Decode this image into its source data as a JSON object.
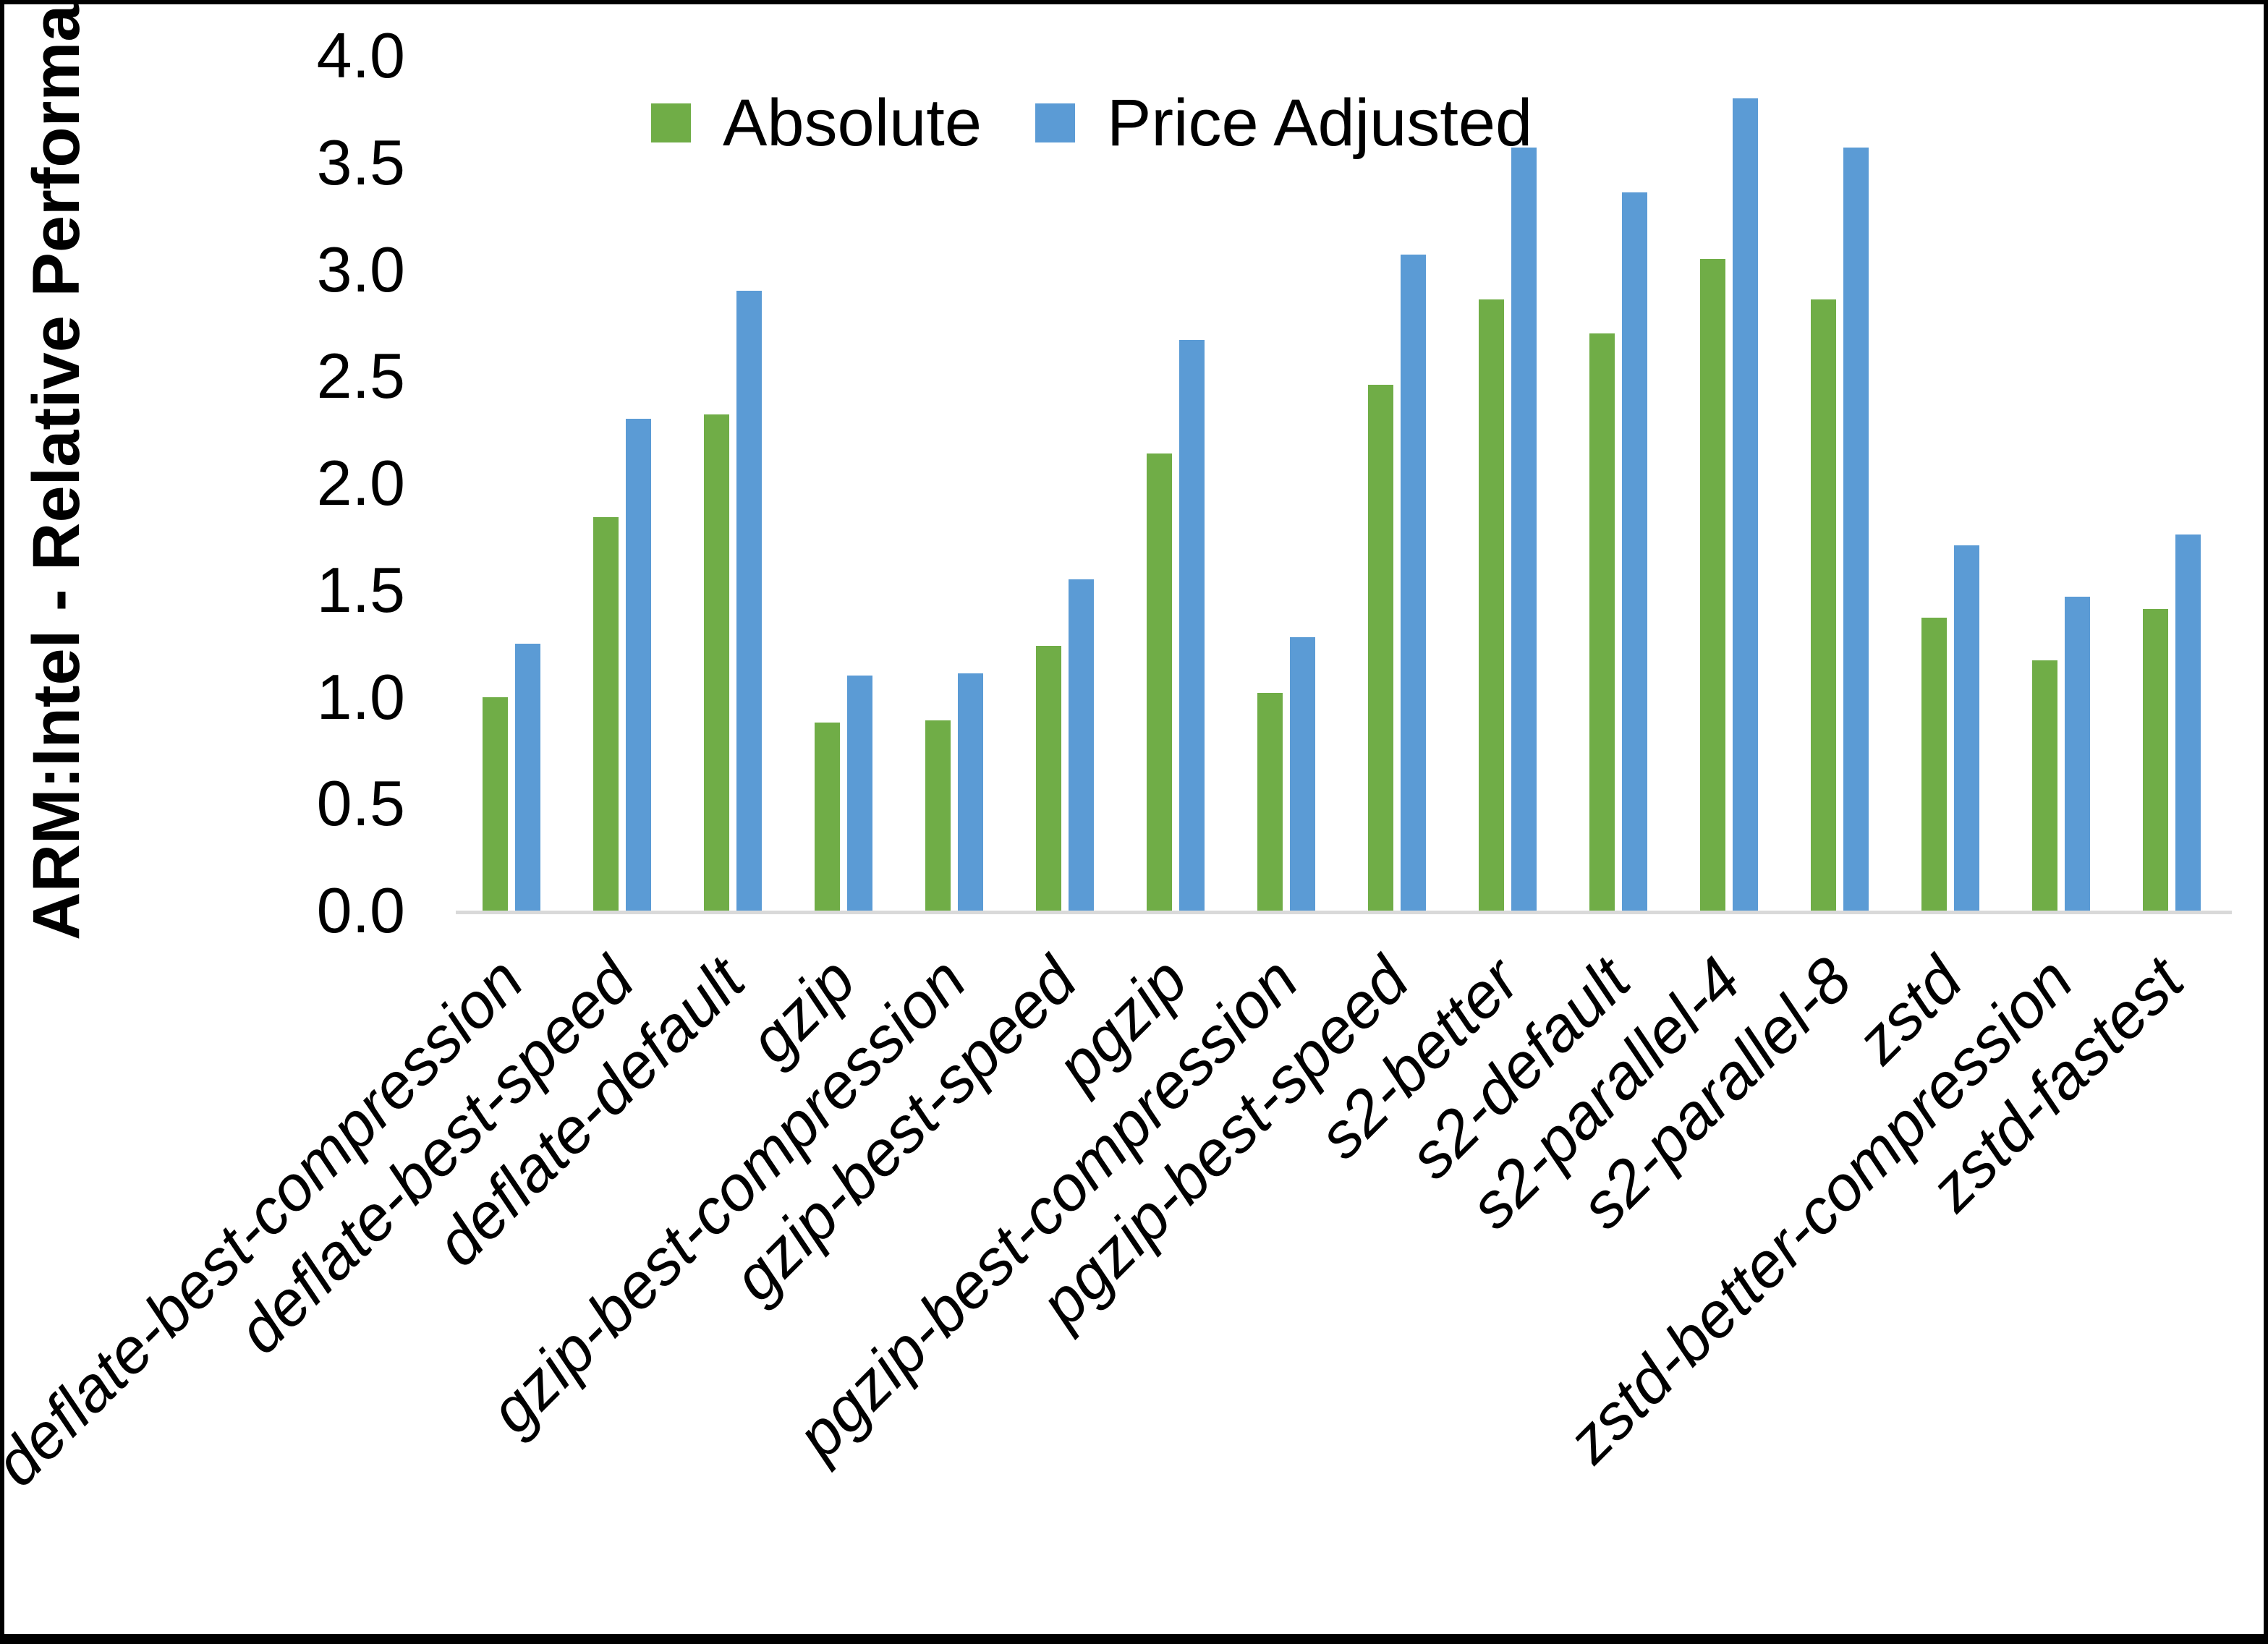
{
  "figure": {
    "background": "#ffffff",
    "frame_color": "#000000",
    "axis_line_color": "#d9d9d9"
  },
  "legend": {
    "items": [
      {
        "label": "Absolute",
        "color": "#70ad47"
      },
      {
        "label": "Price Adjusted",
        "color": "#5b9bd5"
      }
    ]
  },
  "chart_data": {
    "type": "bar",
    "title": "",
    "xlabel": "",
    "ylabel": "ARM:Intel - Relative Performance",
    "ylim": [
      0.0,
      4.0
    ],
    "ytick_step": 0.5,
    "ytick_labels": [
      "0.0",
      "0.5",
      "1.0",
      "1.5",
      "2.0",
      "2.5",
      "3.0",
      "3.5",
      "4.0"
    ],
    "grid": false,
    "legend_position": "top-center",
    "x_label_rotation_deg": 45,
    "categories": [
      "deflate-best-compression",
      "deflate-best-speed",
      "deflate-default",
      "gzip",
      "gzip-best-compression",
      "gzip-best-speed",
      "pgzip",
      "pgzip-best-compression",
      "pgzip-best-speed",
      "s2-better",
      "s2-default",
      "s2-parallel-4",
      "s2-parallel-8",
      "zstd",
      "zstd-better-compression",
      "zstd-fastest"
    ],
    "series": [
      {
        "name": "Absolute",
        "color": "#70ad47",
        "values": [
          1.0,
          1.84,
          2.32,
          0.88,
          0.89,
          1.24,
          2.14,
          1.02,
          2.46,
          2.86,
          2.7,
          3.05,
          2.86,
          1.37,
          1.17,
          1.41
        ]
      },
      {
        "name": "Price Adjusted",
        "color": "#5b9bd5",
        "values": [
          1.25,
          2.3,
          2.9,
          1.1,
          1.11,
          1.55,
          2.67,
          1.28,
          3.07,
          3.57,
          3.36,
          3.8,
          3.57,
          1.71,
          1.47,
          1.76
        ]
      }
    ]
  }
}
